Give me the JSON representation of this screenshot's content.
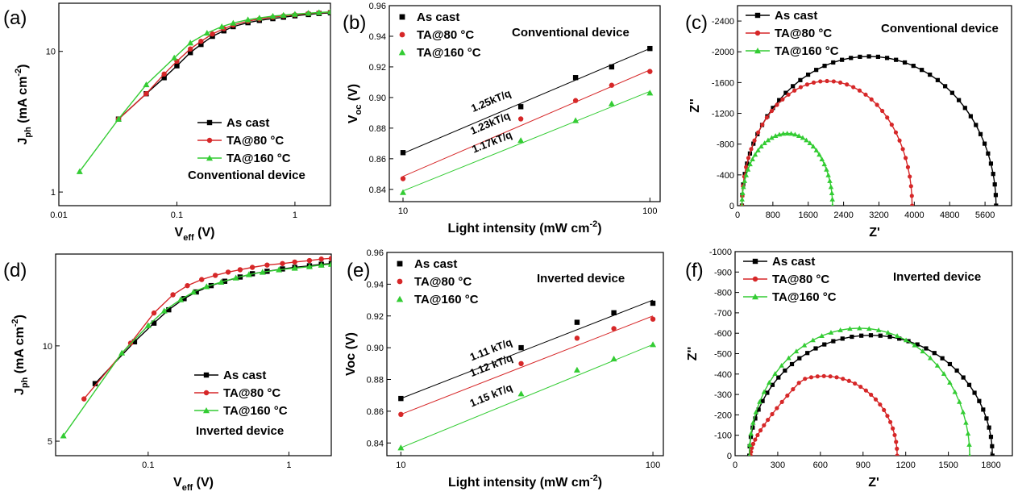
{
  "chart_data": [
    {
      "panel": "(a)",
      "type": "line",
      "xscale": "log",
      "yscale": "log",
      "xlim": [
        0.01,
        2
      ],
      "ylim": [
        0.8,
        22
      ],
      "xticks": [
        [
          "0.01",
          0.01
        ],
        [
          "0.1",
          0.1
        ],
        [
          "1",
          1
        ]
      ],
      "yticks": [
        [
          "1",
          1
        ],
        [
          "10",
          10
        ]
      ],
      "xlabel": "V",
      "xlabel_sub": "eff",
      "xlabel_unit": " (V)",
      "ylabel": "J",
      "ylabel_sub": "ph",
      "ylabel_unit": " (mA cm",
      "ylabel_sup": "-2",
      "ylabel_end": ")",
      "annotation": "Conventional device",
      "legend_pos": "bottom-right",
      "series": [
        {
          "name": "As cast",
          "color": "#000000",
          "marker": "square",
          "points": [
            [
              0.032,
              3.3
            ],
            [
              0.055,
              5.0
            ],
            [
              0.078,
              6.5
            ],
            [
              0.1,
              7.9
            ],
            [
              0.13,
              9.8
            ],
            [
              0.16,
              11.2
            ],
            [
              0.2,
              12.8
            ],
            [
              0.25,
              14.0
            ],
            [
              0.3,
              15.0
            ],
            [
              0.4,
              16.0
            ],
            [
              0.5,
              16.6
            ],
            [
              0.65,
              17.1
            ],
            [
              0.8,
              17.5
            ],
            [
              1.0,
              17.9
            ],
            [
              1.3,
              18.3
            ],
            [
              1.6,
              18.6
            ],
            [
              2.0,
              18.8
            ]
          ]
        },
        {
          "name": "TA@80 °C",
          "color": "#d62728",
          "marker": "circle",
          "points": [
            [
              0.032,
              3.3
            ],
            [
              0.055,
              5.0
            ],
            [
              0.078,
              6.9
            ],
            [
              0.1,
              8.5
            ],
            [
              0.13,
              10.4
            ],
            [
              0.16,
              11.8
            ],
            [
              0.2,
              13.3
            ],
            [
              0.25,
              14.5
            ],
            [
              0.3,
              15.4
            ],
            [
              0.4,
              16.4
            ],
            [
              0.5,
              17.0
            ],
            [
              0.65,
              17.5
            ],
            [
              0.8,
              17.9
            ],
            [
              1.0,
              18.2
            ],
            [
              1.3,
              18.6
            ],
            [
              1.6,
              18.8
            ],
            [
              2.0,
              19.0
            ]
          ]
        },
        {
          "name": "TA@160 °C",
          "color": "#33cc33",
          "marker": "triangle",
          "points": [
            [
              0.015,
              1.4
            ],
            [
              0.032,
              3.3
            ],
            [
              0.055,
              5.8
            ],
            [
              0.095,
              9.0
            ],
            [
              0.13,
              11.5
            ],
            [
              0.18,
              13.5
            ],
            [
              0.24,
              15.0
            ],
            [
              0.3,
              15.9
            ],
            [
              0.4,
              16.8
            ],
            [
              0.5,
              17.3
            ],
            [
              0.65,
              17.8
            ],
            [
              0.8,
              18.1
            ],
            [
              1.0,
              18.4
            ],
            [
              1.3,
              18.7
            ],
            [
              1.6,
              18.9
            ],
            [
              2.0,
              19.1
            ]
          ]
        }
      ]
    },
    {
      "panel": "(b)",
      "type": "scatter",
      "xscale": "log",
      "yscale": "linear",
      "xlim": [
        8.8,
        110
      ],
      "ylim": [
        0.832,
        0.96
      ],
      "xticks": [
        [
          "10",
          10
        ],
        [
          "100",
          100
        ]
      ],
      "yticks": [
        [
          "0.84",
          0.84
        ],
        [
          "0.86",
          0.86
        ],
        [
          "0.88",
          0.88
        ],
        [
          "0.90",
          0.9
        ],
        [
          "0.92",
          0.92
        ],
        [
          "0.94",
          0.94
        ],
        [
          "0.96",
          0.96
        ]
      ],
      "xlabel": "Light intensity (mW cm",
      "xlabel_sup": "-2",
      "xlabel_end": ")",
      "ylabel": "V",
      "ylabel_sub": "oc",
      "ylabel_unit": " (V)",
      "annotation": "Conventional device",
      "legend_pos": "top-left",
      "slope_labels": [
        "1.25kT/q",
        "1.23kT/q",
        "1.17kT/q"
      ],
      "series": [
        {
          "name": "As cast",
          "color": "#000000",
          "marker": "square",
          "points": [
            [
              10,
              0.864
            ],
            [
              30,
              0.894
            ],
            [
              50,
              0.913
            ],
            [
              70,
              0.92
            ],
            [
              100,
              0.932
            ]
          ],
          "fit": [
            [
              10,
              0.8635
            ],
            [
              100,
              0.932
            ]
          ]
        },
        {
          "name": "TA@80 °C",
          "color": "#d62728",
          "marker": "circle",
          "points": [
            [
              10,
              0.847
            ],
            [
              30,
              0.886
            ],
            [
              50,
              0.898
            ],
            [
              70,
              0.908
            ],
            [
              100,
              0.917
            ]
          ],
          "fit": [
            [
              10,
              0.8485
            ],
            [
              100,
              0.918
            ]
          ]
        },
        {
          "name": "TA@160 °C",
          "color": "#33cc33",
          "marker": "triangle",
          "points": [
            [
              10,
              0.838
            ],
            [
              30,
              0.872
            ],
            [
              50,
              0.885
            ],
            [
              70,
              0.896
            ],
            [
              100,
              0.903
            ]
          ],
          "fit": [
            [
              10,
              0.839
            ],
            [
              100,
              0.904
            ]
          ]
        }
      ]
    },
    {
      "panel": "(c)",
      "type": "line",
      "xscale": "linear",
      "yscale": "linear",
      "xlim": [
        0,
        6200
      ],
      "ylim": [
        0,
        -2600
      ],
      "xticks": [
        [
          "0",
          0
        ],
        [
          "800",
          800
        ],
        [
          "1600",
          1600
        ],
        [
          "2400",
          2400
        ],
        [
          "3200",
          3200
        ],
        [
          "4000",
          4000
        ],
        [
          "4800",
          4800
        ],
        [
          "5600",
          5600
        ]
      ],
      "yticks": [
        [
          "0",
          0
        ],
        [
          "-400",
          -400
        ],
        [
          "-800",
          -800
        ],
        [
          "-1200",
          -1200
        ],
        [
          "-1600",
          -1600
        ],
        [
          "-2000",
          -2000
        ],
        [
          "-2400",
          -2400
        ]
      ],
      "xlabel": "Z'",
      "ylabel": "Z''",
      "annotation": "Conventional device",
      "legend_pos": "top-left",
      "series": [
        {
          "name": "As cast",
          "color": "#000000",
          "marker": "square",
          "arc": {
            "x0": 100,
            "x1": 5850,
            "peak": -1940,
            "n": 44
          }
        },
        {
          "name": "TA@80 °C",
          "color": "#d62728",
          "marker": "circle",
          "arc": {
            "x0": 100,
            "x1": 3950,
            "peak": -1620,
            "n": 40
          }
        },
        {
          "name": "TA@160 °C",
          "color": "#33cc33",
          "marker": "triangle",
          "arc": {
            "x0": 100,
            "x1": 2150,
            "peak": -940,
            "n": 36
          }
        }
      ]
    },
    {
      "panel": "(d)",
      "type": "line",
      "xscale": "log",
      "yscale": "log",
      "xlim": [
        0.022,
        2
      ],
      "ylim": [
        4.5,
        19.5
      ],
      "xticks": [
        [
          "0.1",
          0.1
        ],
        [
          "1",
          1
        ]
      ],
      "yticks": [
        [
          "5",
          5
        ],
        [
          "10",
          10
        ]
      ],
      "xlabel": "V",
      "xlabel_sub": "eff",
      "xlabel_unit": " (V)",
      "ylabel": "J",
      "ylabel_sub": "ph",
      "ylabel_unit": " (mA cm",
      "ylabel_sup": "-2",
      "ylabel_end": ")",
      "annotation": "Inverted device",
      "legend_pos": "bottom-right",
      "series": [
        {
          "name": "As cast",
          "color": "#000000",
          "marker": "square",
          "points": [
            [
              0.042,
              7.6
            ],
            [
              0.08,
              10.3
            ],
            [
              0.11,
              11.8
            ],
            [
              0.14,
              13.0
            ],
            [
              0.18,
              14.1
            ],
            [
              0.22,
              14.8
            ],
            [
              0.28,
              15.5
            ],
            [
              0.35,
              16.0
            ],
            [
              0.45,
              16.5
            ],
            [
              0.55,
              16.9
            ],
            [
              0.7,
              17.2
            ],
            [
              0.9,
              17.5
            ],
            [
              1.1,
              17.7
            ],
            [
              1.4,
              17.9
            ],
            [
              1.7,
              18.1
            ],
            [
              2.0,
              18.2
            ]
          ]
        },
        {
          "name": "TA@80 °C",
          "color": "#d62728",
          "marker": "circle",
          "points": [
            [
              0.035,
              6.8
            ],
            [
              0.075,
              10.2
            ],
            [
              0.11,
              12.7
            ],
            [
              0.15,
              14.5
            ],
            [
              0.19,
              15.5
            ],
            [
              0.24,
              16.2
            ],
            [
              0.3,
              16.7
            ],
            [
              0.37,
              17.1
            ],
            [
              0.45,
              17.4
            ],
            [
              0.55,
              17.7
            ],
            [
              0.7,
              18.0
            ],
            [
              0.9,
              18.2
            ],
            [
              1.1,
              18.4
            ],
            [
              1.4,
              18.6
            ],
            [
              1.7,
              18.8
            ],
            [
              2.0,
              18.9
            ]
          ]
        },
        {
          "name": "TA@160 °C",
          "color": "#33cc33",
          "marker": "triangle",
          "points": [
            [
              0.025,
              5.2
            ],
            [
              0.065,
              9.5
            ],
            [
              0.1,
              11.6
            ],
            [
              0.13,
              12.9
            ],
            [
              0.17,
              14.0
            ],
            [
              0.21,
              14.8
            ],
            [
              0.26,
              15.4
            ],
            [
              0.33,
              15.9
            ],
            [
              0.42,
              16.4
            ],
            [
              0.52,
              16.8
            ],
            [
              0.65,
              17.1
            ],
            [
              0.85,
              17.4
            ],
            [
              1.1,
              17.6
            ],
            [
              1.4,
              17.8
            ],
            [
              1.7,
              18.0
            ],
            [
              2.0,
              18.1
            ]
          ]
        }
      ]
    },
    {
      "panel": "(e)",
      "type": "scatter",
      "xscale": "log",
      "yscale": "linear",
      "xlim": [
        8.8,
        110
      ],
      "ylim": [
        0.832,
        0.96
      ],
      "xticks": [
        [
          "10",
          10
        ],
        [
          "100",
          100
        ]
      ],
      "yticks": [
        [
          "0.84",
          0.84
        ],
        [
          "0.86",
          0.86
        ],
        [
          "0.88",
          0.88
        ],
        [
          "0.90",
          0.9
        ],
        [
          "0.92",
          0.92
        ],
        [
          "0.94",
          0.94
        ],
        [
          "0.96",
          0.96
        ]
      ],
      "xlabel": "Light intensity (mW cm",
      "xlabel_sup": "-2",
      "xlabel_end": ")",
      "ylabel": "Voc (V)",
      "annotation": "Inverted device",
      "legend_pos": "top-left",
      "slope_labels": [
        "1.11 kT/q",
        "1.12 kT/q",
        "1.15 kT/q"
      ],
      "series": [
        {
          "name": "As cast",
          "color": "#000000",
          "marker": "square",
          "points": [
            [
              10,
              0.868
            ],
            [
              30,
              0.9
            ],
            [
              50,
              0.916
            ],
            [
              70,
              0.922
            ],
            [
              100,
              0.928
            ]
          ],
          "fit": [
            [
              10,
              0.868
            ],
            [
              100,
              0.93
            ]
          ]
        },
        {
          "name": "TA@80 °C",
          "color": "#d62728",
          "marker": "circle",
          "points": [
            [
              10,
              0.858
            ],
            [
              30,
              0.89
            ],
            [
              50,
              0.906
            ],
            [
              70,
              0.912
            ],
            [
              100,
              0.918
            ]
          ],
          "fit": [
            [
              10,
              0.858
            ],
            [
              100,
              0.92
            ]
          ]
        },
        {
          "name": "TA@160 °C",
          "color": "#33cc33",
          "marker": "triangle",
          "points": [
            [
              10,
              0.837
            ],
            [
              30,
              0.871
            ],
            [
              50,
              0.886
            ],
            [
              70,
              0.893
            ],
            [
              100,
              0.902
            ]
          ],
          "fit": [
            [
              10,
              0.837
            ],
            [
              100,
              0.902
            ]
          ]
        }
      ]
    },
    {
      "panel": "(f)",
      "type": "line",
      "xscale": "linear",
      "yscale": "linear",
      "xlim": [
        0,
        1950
      ],
      "ylim": [
        0,
        -1000
      ],
      "xticks": [
        [
          "0",
          0
        ],
        [
          "300",
          300
        ],
        [
          "600",
          600
        ],
        [
          "900",
          900
        ],
        [
          "1200",
          1200
        ],
        [
          "1500",
          1500
        ],
        [
          "1800",
          1800
        ]
      ],
      "yticks": [
        [
          "0",
          0
        ],
        [
          "-100",
          -100
        ],
        [
          "-200",
          -200
        ],
        [
          "-300",
          -300
        ],
        [
          "-400",
          -400
        ],
        [
          "-500",
          -500
        ],
        [
          "-600",
          -600
        ],
        [
          "-700",
          -700
        ],
        [
          "-800",
          -800
        ],
        [
          "-900",
          -900
        ],
        [
          "-1000",
          -1000
        ]
      ],
      "xlabel": "Z'",
      "ylabel": "Z''",
      "annotation": "Inverted device",
      "legend_pos": "top-left",
      "series": [
        {
          "name": "As cast",
          "color": "#000000",
          "marker": "square",
          "arc": {
            "x0": 100,
            "x1": 1810,
            "peak": -590,
            "n": 40
          }
        },
        {
          "name": "TA@80 °C",
          "color": "#d62728",
          "marker": "circle",
          "arc": {
            "x0": 110,
            "x1": 1140,
            "peak": -390,
            "n": 36,
            "shoulder": true
          }
        },
        {
          "name": "TA@160 °C",
          "color": "#33cc33",
          "marker": "triangle",
          "arc": {
            "x0": 100,
            "x1": 1650,
            "peak": -625,
            "n": 36
          }
        }
      ]
    }
  ]
}
